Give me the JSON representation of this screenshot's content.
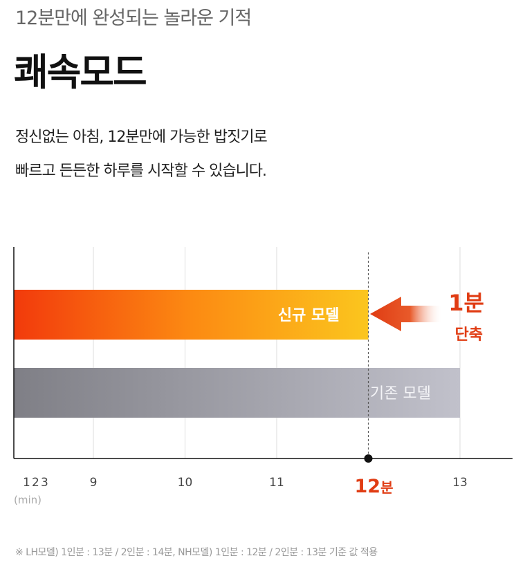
{
  "header": {
    "subtitle": "12분만에 완성되는 놀라운 기적",
    "title": "쾌속모드",
    "description_line1": "정신없는 아침, 12분만에 가능한 밥짓기로",
    "description_line2": "빠르고 든든한 하루를 시작할 수 있습니다."
  },
  "chart_data": {
    "type": "bar",
    "orientation": "horizontal",
    "categories": [
      "신규 모델",
      "기존 모델"
    ],
    "values": [
      12,
      13
    ],
    "x_ticks": [
      {
        "value": 1,
        "label": "1",
        "highlight": false
      },
      {
        "value": 2,
        "label": "2",
        "highlight": false
      },
      {
        "value": 3,
        "label": "3",
        "highlight": false
      },
      {
        "value": 9,
        "label": "9",
        "highlight": false
      },
      {
        "value": 10,
        "label": "10",
        "highlight": false
      },
      {
        "value": 11,
        "label": "11",
        "highlight": false
      },
      {
        "value": 12,
        "label": "12",
        "unit": "분",
        "highlight": true
      },
      {
        "value": 13,
        "label": "13",
        "highlight": false
      }
    ],
    "x_unit_label": "(min)",
    "reference_line": 12,
    "axis_break": "between 3 and 9",
    "annotation": {
      "line1": "1분",
      "line2": "단축"
    },
    "colors": {
      "new_start": "#f23a0c",
      "new_mid": "#fc8a12",
      "new_end": "#fbc61e",
      "old_start": "#7f7f86",
      "old_end": "#c1c1cb",
      "highlight": "#e03c13",
      "axis": "#111111",
      "grid": "#dddddd"
    }
  },
  "footnote": "※ LH모델) 1인분 : 13분 / 2인분 : 14분, NH모델) 1인분 : 12분 / 2인분 : 13분 기준 값 적용"
}
